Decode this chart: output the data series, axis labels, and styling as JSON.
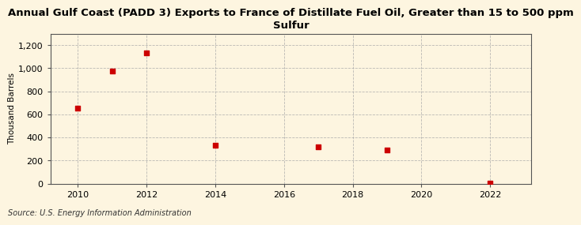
{
  "title": "Annual Gulf Coast (PADD 3) Exports to France of Distillate Fuel Oil, Greater than 15 to 500 ppm\nSulfur",
  "ylabel": "Thousand Barrels",
  "source": "Source: U.S. Energy Information Administration",
  "background_color": "#fdf5e0",
  "plot_background_color": "#fdf5e0",
  "data_points": [
    {
      "year": 2010,
      "value": 651
    },
    {
      "year": 2011,
      "value": 975
    },
    {
      "year": 2012,
      "value": 1130
    },
    {
      "year": 2014,
      "value": 330
    },
    {
      "year": 2017,
      "value": 318
    },
    {
      "year": 2019,
      "value": 290
    },
    {
      "year": 2022,
      "value": 5
    }
  ],
  "marker_color": "#cc0000",
  "marker_style": "s",
  "marker_size": 4,
  "xlim": [
    2009.2,
    2023.2
  ],
  "ylim": [
    0,
    1300
  ],
  "yticks": [
    0,
    200,
    400,
    600,
    800,
    1000,
    1200
  ],
  "ytick_labels": [
    "0",
    "200",
    "400",
    "600",
    "800",
    "1,000",
    "1,200"
  ],
  "xticks": [
    2010,
    2012,
    2014,
    2016,
    2018,
    2020,
    2022
  ],
  "grid_color": "#aaaaaa",
  "grid_style": "--",
  "grid_alpha": 0.8,
  "title_fontsize": 9.5,
  "axis_label_fontsize": 7.5,
  "tick_fontsize": 8,
  "source_fontsize": 7
}
